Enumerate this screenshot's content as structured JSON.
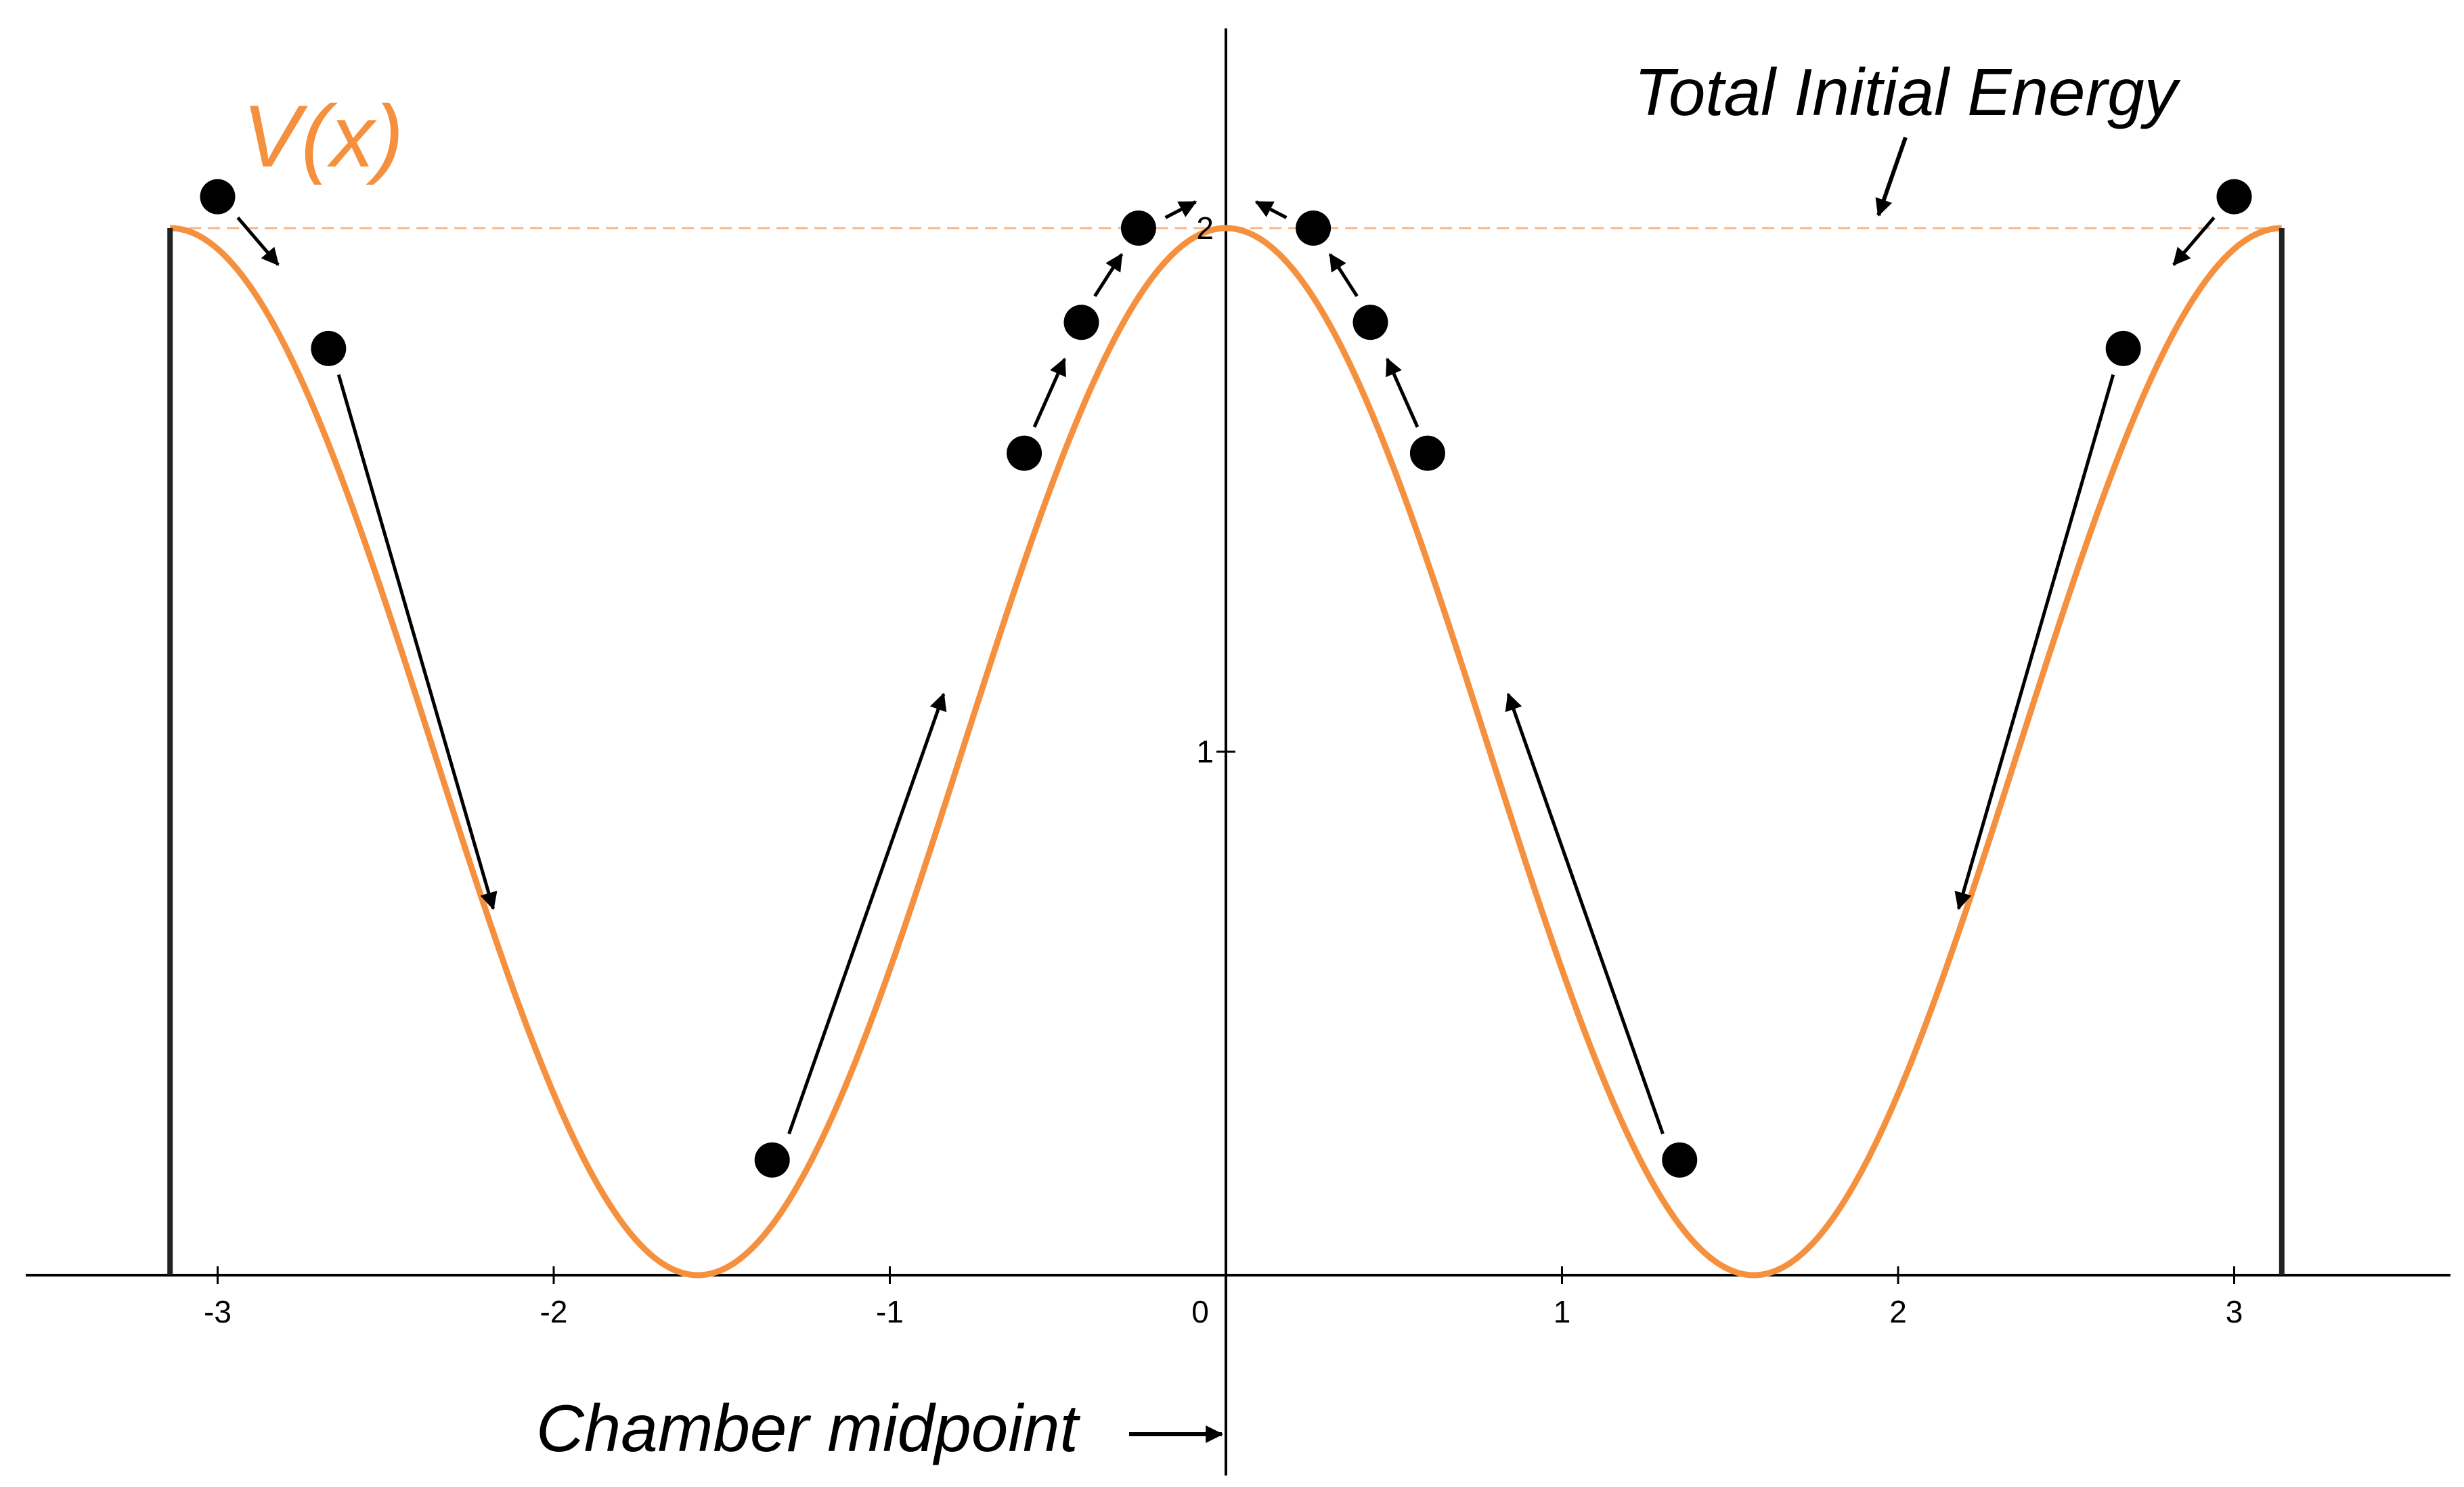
{
  "chart_data": {
    "type": "line",
    "title": "",
    "xlabel": "",
    "ylabel": "",
    "xlim": [
      -3.6,
      3.6
    ],
    "ylim": [
      0,
      2.35
    ],
    "x_ticks": [
      -3,
      -2,
      -1,
      0,
      1,
      2,
      3
    ],
    "y_ticks": [
      1,
      2
    ],
    "x_tick_labels": [
      "-3",
      "-2",
      "-1",
      "0",
      "1",
      "2",
      "3"
    ],
    "y_tick_labels": [
      "1",
      "2"
    ],
    "grid": false,
    "series": [
      {
        "name": "V(x)",
        "function": "1 + cos(2x)",
        "domain": [
          -3.1416,
          3.1416
        ],
        "color": "#f5903e"
      }
    ],
    "walls": {
      "x": [
        -3.1416,
        3.1416
      ],
      "y_top": 2,
      "color": "#222222"
    },
    "energy_level": {
      "y": 2,
      "label": "Total Initial Energy",
      "color": "#f5b58a"
    },
    "points": [
      {
        "x": -3.0,
        "y": 2.06
      },
      {
        "x": -2.67,
        "y": 1.77
      },
      {
        "x": -1.35,
        "y": 0.22
      },
      {
        "x": -0.6,
        "y": 1.57
      },
      {
        "x": -0.43,
        "y": 1.82
      },
      {
        "x": -0.26,
        "y": 2.0
      },
      {
        "x": 0.26,
        "y": 2.0
      },
      {
        "x": 0.43,
        "y": 1.82
      },
      {
        "x": 0.6,
        "y": 1.57
      },
      {
        "x": 1.35,
        "y": 0.22
      },
      {
        "x": 2.67,
        "y": 1.77
      },
      {
        "x": 3.0,
        "y": 2.06
      }
    ],
    "motion_arrows": [
      {
        "from": [
          -2.94,
          2.02
        ],
        "to": [
          -2.82,
          1.93
        ]
      },
      {
        "from": [
          -2.64,
          1.72
        ],
        "to": [
          -2.18,
          0.7
        ]
      },
      {
        "from": [
          -1.3,
          0.27
        ],
        "to": [
          -0.84,
          1.11
        ]
      },
      {
        "from": [
          -0.57,
          1.62
        ],
        "to": [
          -0.48,
          1.75
        ]
      },
      {
        "from": [
          -0.39,
          1.87
        ],
        "to": [
          -0.31,
          1.95
        ]
      },
      {
        "from": [
          -0.18,
          2.02
        ],
        "to": [
          -0.09,
          2.05
        ]
      },
      {
        "from": [
          0.18,
          2.02
        ],
        "to": [
          0.09,
          2.05
        ]
      },
      {
        "from": [
          0.39,
          1.87
        ],
        "to": [
          0.31,
          1.95
        ]
      },
      {
        "from": [
          0.57,
          1.62
        ],
        "to": [
          0.48,
          1.75
        ]
      },
      {
        "from": [
          1.3,
          0.27
        ],
        "to": [
          0.84,
          1.11
        ]
      },
      {
        "from": [
          2.64,
          1.72
        ],
        "to": [
          2.18,
          0.7
        ]
      },
      {
        "from": [
          2.94,
          2.02
        ],
        "to": [
          2.82,
          1.93
        ]
      }
    ],
    "annotations": [
      {
        "id": "energy",
        "text": "Total Initial Energy"
      },
      {
        "id": "midpoint",
        "text": "Chamber midpoint"
      },
      {
        "id": "curve",
        "text": "V(x)"
      }
    ]
  }
}
